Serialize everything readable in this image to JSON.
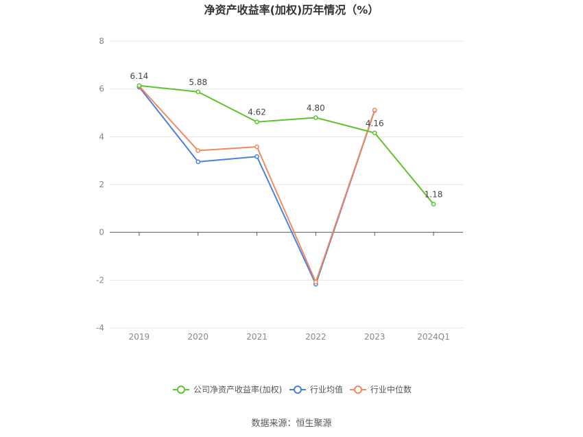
{
  "chart_data": {
    "type": "line",
    "title": "净资产收益率(加权)历年情况（%）",
    "categories": [
      "2019",
      "2020",
      "2021",
      "2022",
      "2023",
      "2024Q1"
    ],
    "ylim": [
      -4,
      8
    ],
    "yticks": [
      "8",
      "6",
      "4",
      "2",
      "0",
      "-2",
      "-4"
    ],
    "grid": true,
    "legend_position": "bottom",
    "series": [
      {
        "name": "公司净资产收益率(加权)",
        "color": "#5cc22e",
        "values": [
          6.14,
          5.88,
          4.62,
          4.8,
          4.16,
          1.18
        ],
        "labels": [
          "6.14",
          "5.88",
          "4.62",
          "4.80",
          "4.16",
          "1.18"
        ]
      },
      {
        "name": "行业均值",
        "color": "#4a7fdb",
        "values": [
          6.08,
          2.95,
          3.17,
          -2.17,
          5.1,
          null
        ]
      },
      {
        "name": "行业中位数",
        "color": "#f08a5d",
        "values": [
          6.12,
          3.42,
          3.58,
          -2.08,
          5.12,
          null
        ]
      }
    ]
  },
  "source": "数据来源：恒生聚源"
}
